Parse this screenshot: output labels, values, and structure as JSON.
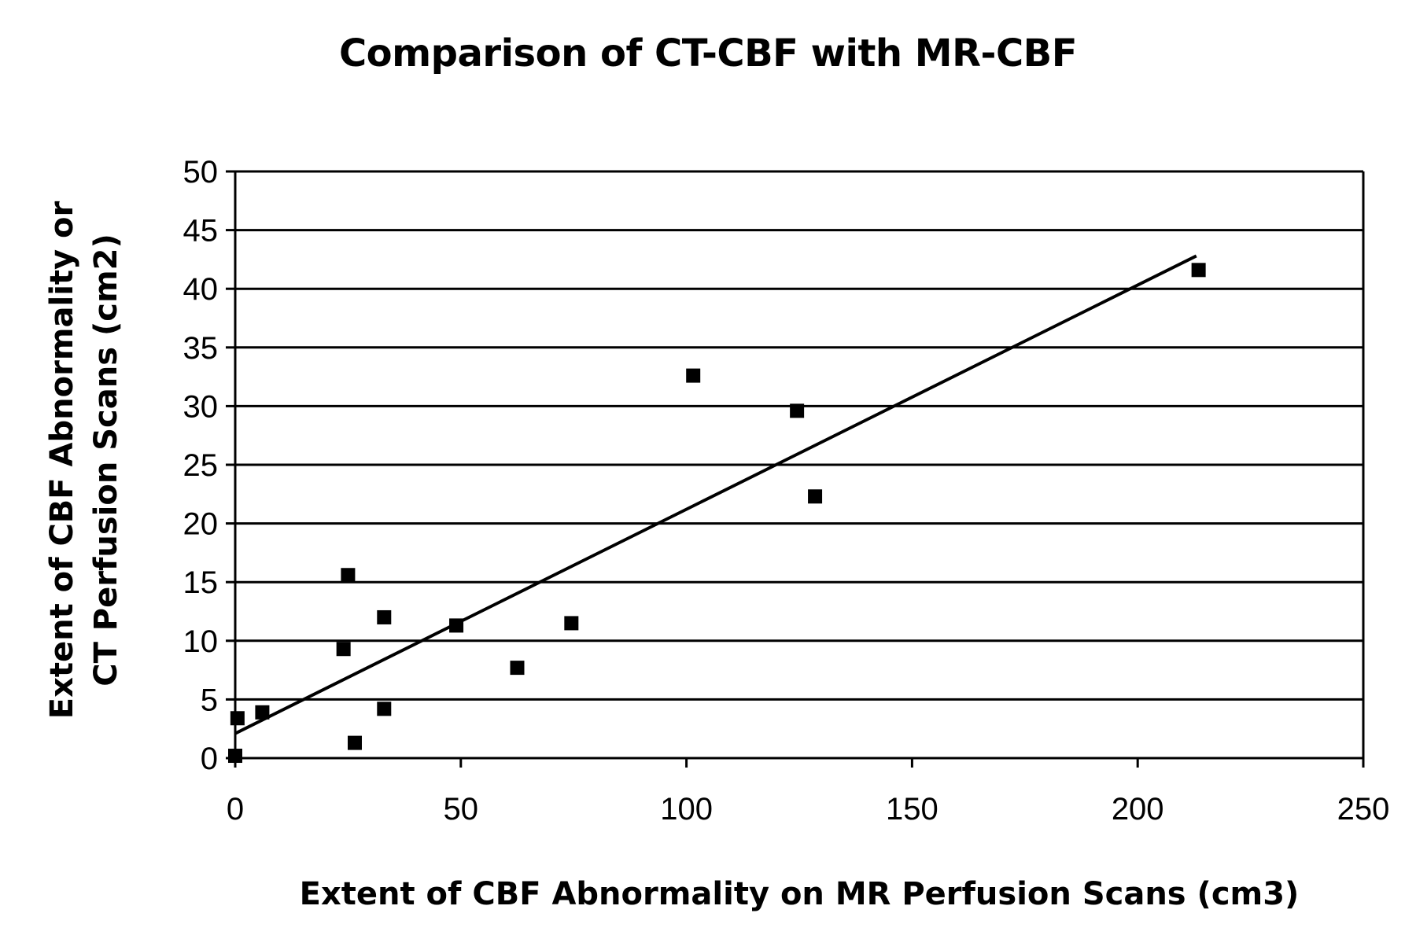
{
  "chart_data": {
    "type": "scatter",
    "title": "Comparison of CT-CBF with MR-CBF",
    "xlabel": "Extent of CBF Abnormality on MR Perfusion Scans (cm3)",
    "ylabel_lines": [
      "Extent of CBF Abnormality or",
      "CT Perfusion Scans (cm2)"
    ],
    "xlim": [
      0,
      250
    ],
    "ylim": [
      0,
      50
    ],
    "x_ticks": [
      0,
      50,
      100,
      150,
      200,
      250
    ],
    "y_ticks": [
      0,
      5,
      10,
      15,
      20,
      25,
      30,
      35,
      40,
      45,
      50
    ],
    "grid": "horizontal",
    "marker": "square",
    "points": [
      {
        "x": 0,
        "y": 0.2
      },
      {
        "x": 0.5,
        "y": 3.4
      },
      {
        "x": 6,
        "y": 3.9
      },
      {
        "x": 24,
        "y": 9.3
      },
      {
        "x": 25,
        "y": 15.6
      },
      {
        "x": 26.5,
        "y": 1.3
      },
      {
        "x": 33,
        "y": 12
      },
      {
        "x": 33,
        "y": 4.2
      },
      {
        "x": 49,
        "y": 11.3
      },
      {
        "x": 62.5,
        "y": 7.7
      },
      {
        "x": 74.5,
        "y": 11.5
      },
      {
        "x": 101.5,
        "y": 32.6
      },
      {
        "x": 124.5,
        "y": 29.6
      },
      {
        "x": 128.5,
        "y": 22.3
      },
      {
        "x": 213.5,
        "y": 41.6
      }
    ],
    "trendline": {
      "x": [
        0,
        213
      ],
      "y": [
        2.1,
        42.8
      ]
    }
  }
}
